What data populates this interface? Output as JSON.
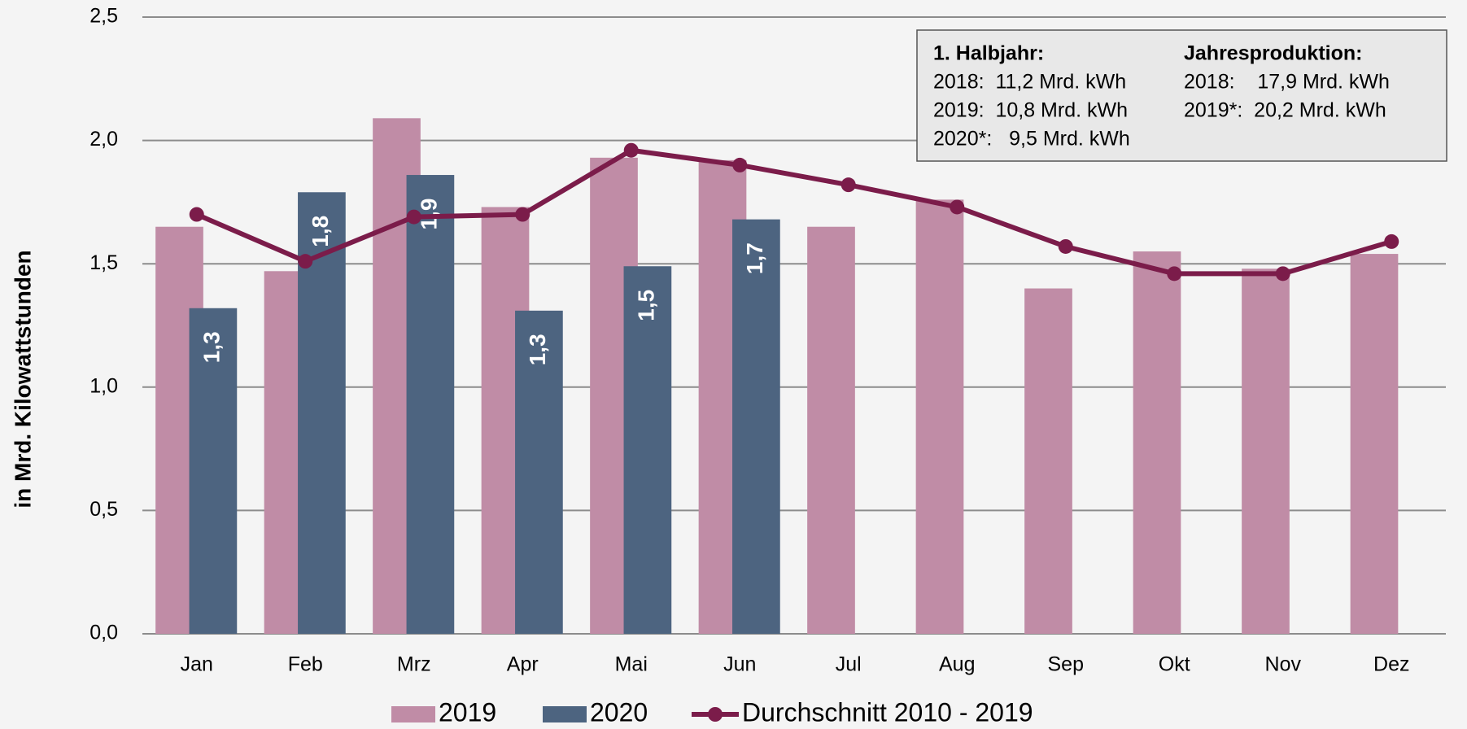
{
  "chart_data": {
    "type": "bar",
    "y_label": "in Mrd. Kilowattstunden",
    "categories": [
      "Jan",
      "Feb",
      "Mrz",
      "Apr",
      "Mai",
      "Jun",
      "Jul",
      "Aug",
      "Sep",
      "Okt",
      "Nov",
      "Dez"
    ],
    "series": [
      {
        "name": "2019",
        "type": "bar",
        "color": "#c08ca6",
        "values": [
          1.65,
          1.47,
          2.09,
          1.73,
          1.93,
          1.92,
          1.65,
          1.76,
          1.4,
          1.55,
          1.48,
          1.54
        ]
      },
      {
        "name": "2020",
        "type": "bar",
        "color": "#4d6480",
        "values": [
          1.32,
          1.79,
          1.86,
          1.31,
          1.49,
          1.68,
          null,
          null,
          null,
          null,
          null,
          null
        ],
        "value_labels": [
          "1,3",
          "1,8",
          "1,9",
          "1,3",
          "1,5",
          "1,7",
          null,
          null,
          null,
          null,
          null,
          null
        ]
      },
      {
        "name": "Durchschnitt 2010 - 2019",
        "type": "line",
        "color": "#7b1c4a",
        "values": [
          1.7,
          1.51,
          1.69,
          1.7,
          1.96,
          1.9,
          1.82,
          1.73,
          1.57,
          1.46,
          1.46,
          1.59
        ]
      }
    ],
    "ylim": [
      0,
      2.5
    ],
    "yticks": [
      {
        "value": 0,
        "label": "0,0"
      },
      {
        "value": 0.5,
        "label": "0,5"
      },
      {
        "value": 1,
        "label": "1,0"
      },
      {
        "value": 1.5,
        "label": "1,5"
      },
      {
        "value": 2,
        "label": "2,0"
      },
      {
        "value": 2.5,
        "label": "2,5"
      }
    ],
    "grid": true,
    "annotation": {
      "left": {
        "heading": "1. Halbjahr:",
        "lines": [
          "2018:  11,2 Mrd. kWh",
          "2019:  10,8 Mrd. kWh",
          "2020*:   9,5 Mrd. kWh"
        ]
      },
      "right": {
        "heading": "Jahresproduktion:",
        "lines": [
          "2018:    17,9 Mrd. kWh",
          "2019*:  20,2 Mrd. kWh"
        ]
      }
    }
  }
}
